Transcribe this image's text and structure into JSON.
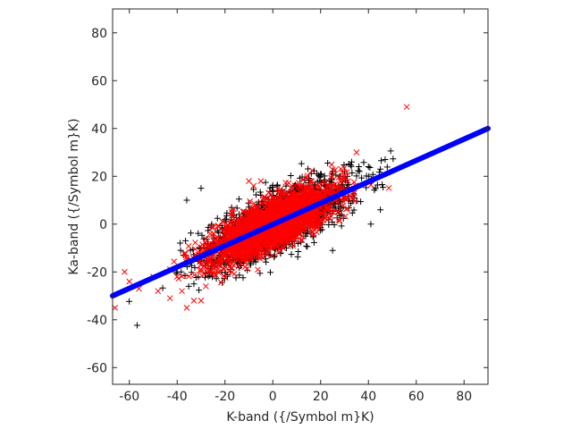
{
  "chart_data": {
    "type": "scatter",
    "title": "",
    "xlabel": "K-band ({/Symbol m}K)",
    "ylabel": "Ka-band ({/Symbol m}K)",
    "xlim": [
      -67,
      90
    ],
    "ylim": [
      -67,
      90
    ],
    "xticks": [
      -60,
      -40,
      -20,
      0,
      20,
      40,
      60,
      80
    ],
    "yticks": [
      -60,
      -40,
      -20,
      0,
      20,
      40,
      60,
      80
    ],
    "xtick_labels": [
      "-60",
      "-40",
      "-20",
      "0",
      "20",
      "40",
      "60",
      "80"
    ],
    "ytick_labels": [
      "-60",
      "-40",
      "-20",
      "0",
      "20",
      "40",
      "60",
      "80"
    ],
    "grid": false,
    "legend": "none",
    "colors": {
      "plus_series": "#000000",
      "cross_series": "#ff0000",
      "fit_line": "#0000ff",
      "axes": "#262626"
    },
    "series": [
      {
        "marker": "plus",
        "cloud": {
          "n": 1800,
          "x_mean": 2,
          "x_sd": 15,
          "slope": 0.45,
          "intercept": 0,
          "scatter_sd": 6
        },
        "points": [
          [
            36,
            24
          ],
          [
            40,
            24
          ],
          [
            47,
            27
          ],
          [
            45,
            23
          ],
          [
            43,
            15
          ],
          [
            45,
            6
          ],
          [
            41,
            0
          ],
          [
            25,
            -11
          ],
          [
            -30,
            15
          ],
          [
            -36,
            10
          ],
          [
            -25,
            -16
          ],
          [
            -33,
            -25
          ],
          [
            -5,
            12
          ],
          [
            30,
            22
          ],
          [
            33,
            26
          ],
          [
            28,
            20
          ],
          [
            -40,
            -20
          ],
          [
            10,
            15
          ],
          [
            15,
            19
          ],
          [
            20,
            21
          ],
          [
            25,
            22
          ]
        ]
      },
      {
        "marker": "x",
        "cloud": {
          "n": 2300,
          "x_mean": 0,
          "x_sd": 13,
          "slope": 0.45,
          "intercept": 0,
          "scatter_sd": 5
        },
        "points": [
          [
            56,
            49
          ],
          [
            -66,
            -35
          ],
          [
            -62,
            -20
          ],
          [
            -60,
            -24
          ],
          [
            -56,
            -27
          ],
          [
            -50,
            -22
          ],
          [
            -48,
            -28
          ],
          [
            -43,
            -31
          ],
          [
            -40,
            -22
          ],
          [
            -38,
            -28
          ],
          [
            -36,
            -35
          ],
          [
            -33,
            -32
          ],
          [
            -30,
            -32
          ],
          [
            -28,
            -26
          ],
          [
            35,
            30
          ],
          [
            30,
            20
          ],
          [
            25,
            16
          ],
          [
            -5,
            18
          ],
          [
            -10,
            18
          ],
          [
            -8,
            16
          ]
        ]
      },
      {
        "marker": "line",
        "x": [
          -67,
          90
        ],
        "y": [
          -30,
          40
        ]
      }
    ]
  }
}
